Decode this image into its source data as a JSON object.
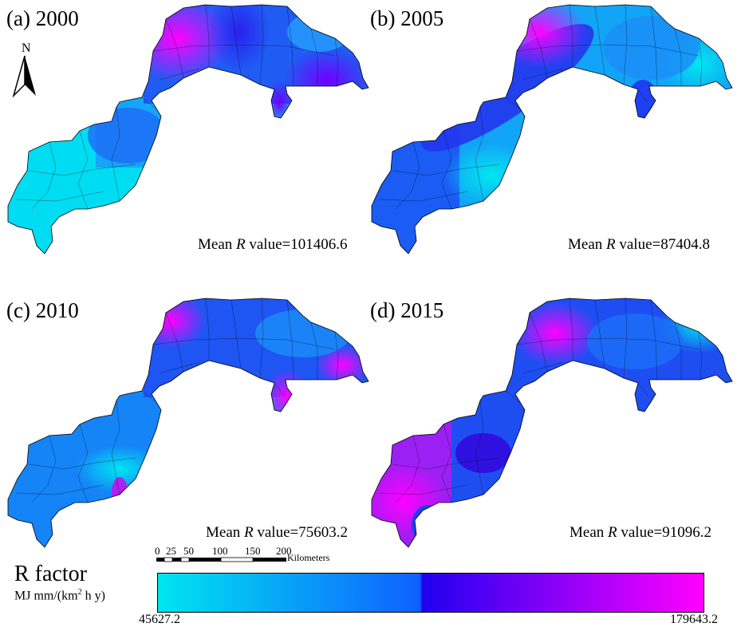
{
  "figure": {
    "panels": [
      {
        "label": "(a) 2000",
        "mean_label": "Mean ",
        "mean_var": "R",
        "mean_suffix": " value=101406.6",
        "mean_value": 101406.6
      },
      {
        "label": "(b) 2005",
        "mean_label": "Mean ",
        "mean_var": "R",
        "mean_suffix": " value=87404.8",
        "mean_value": 87404.8
      },
      {
        "label": "(c) 2010",
        "mean_label": "Mean ",
        "mean_var": "R",
        "mean_suffix": " value=75603.2",
        "mean_value": 75603.2
      },
      {
        "label": "(d) 2015",
        "mean_label": "Mean ",
        "mean_var": "R",
        "mean_suffix": " value=91096.2",
        "mean_value": 91096.2
      }
    ],
    "north_arrow": "N",
    "scale_bar": {
      "ticks": [
        "0",
        "25",
        "50",
        "100",
        "150",
        "200"
      ],
      "unit": "Kilometers"
    },
    "legend": {
      "title": "R factor",
      "unit_prefix": "MJ mm/(km",
      "unit_sup": "2",
      "unit_suffix": " h y)",
      "min": "45627.2",
      "max": "179643.2",
      "colors": [
        "#00e5f0",
        "#1060ff",
        "#2000f0",
        "#ff00ff"
      ]
    }
  }
}
